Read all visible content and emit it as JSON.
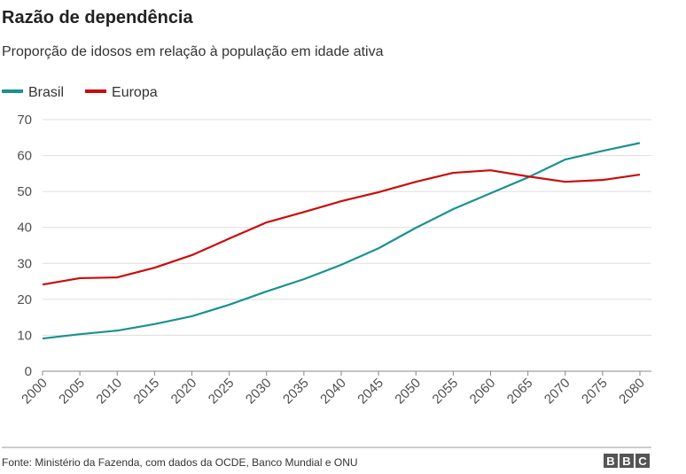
{
  "chart_data": {
    "type": "line",
    "title": "Razão de dependência",
    "subtitle": "Proporção de idosos em relação à população em idade ativa",
    "x": [
      2000,
      2005,
      2010,
      2015,
      2020,
      2025,
      2030,
      2035,
      2040,
      2045,
      2050,
      2055,
      2060,
      2065,
      2070,
      2075,
      2080
    ],
    "series": [
      {
        "name": "Brasil",
        "color": "#1a9290",
        "values": [
          9.1,
          10.3,
          11.3,
          13.1,
          15.3,
          18.5,
          22.2,
          25.6,
          29.6,
          34.2,
          39.9,
          45.1,
          49.5,
          53.9,
          58.9,
          61.3,
          63.5
        ]
      },
      {
        "name": "Europa",
        "color": "#cc0a0a",
        "values": [
          24.1,
          25.9,
          26.1,
          28.8,
          32.3,
          36.9,
          41.4,
          44.3,
          47.3,
          49.8,
          52.7,
          55.2,
          55.9,
          54.2,
          52.7,
          53.2,
          54.7
        ]
      }
    ],
    "xlim": [
      2000,
      2080
    ],
    "xticks": [
      2000,
      2005,
      2010,
      2015,
      2020,
      2025,
      2030,
      2035,
      2040,
      2045,
      2050,
      2055,
      2060,
      2065,
      2070,
      2075,
      2080
    ],
    "ylim": [
      0,
      70
    ],
    "yticks": [
      0,
      10,
      20,
      30,
      40,
      50,
      60,
      70
    ],
    "grid": true,
    "legend": "top-left",
    "source": "Fonte: Ministério da Fazenda, com dados da OCDE, Banco Mundial e ONU",
    "logo": [
      "B",
      "B",
      "C"
    ]
  }
}
